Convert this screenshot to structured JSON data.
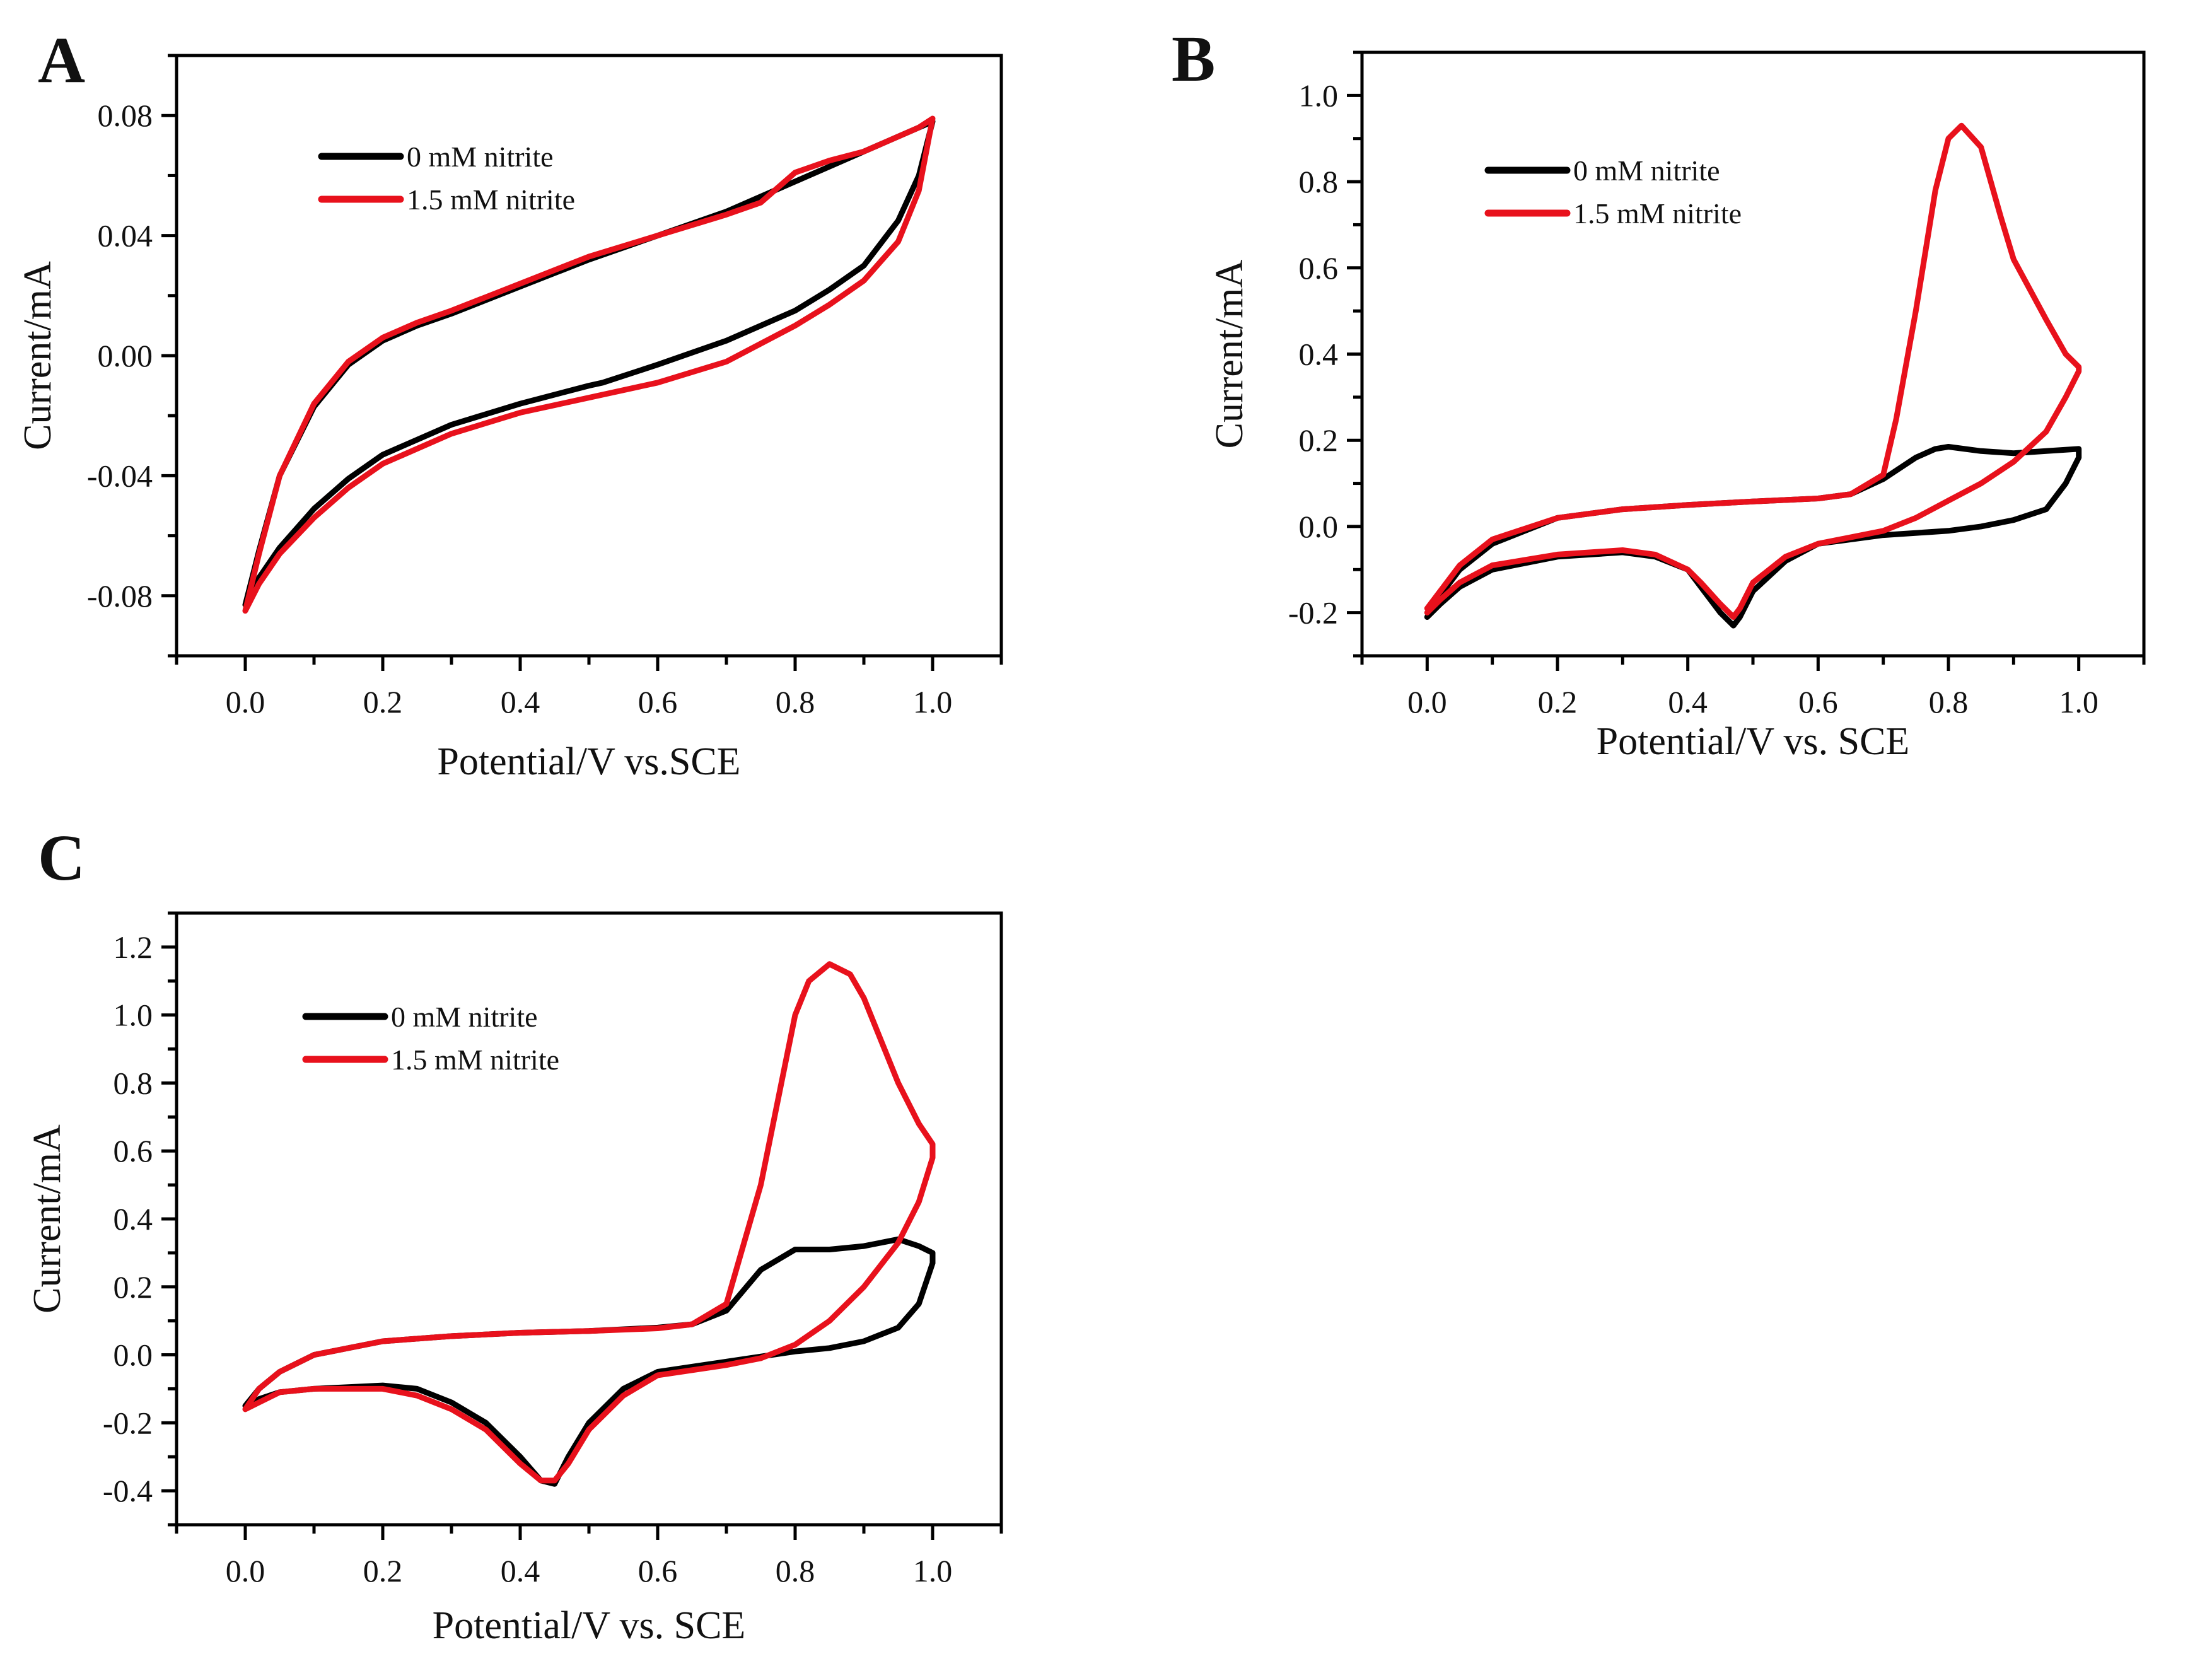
{
  "colors": {
    "series0": "#000000",
    "series1": "#e8111c",
    "axis": "#000000"
  },
  "chart_data": [
    {
      "panel_label": "A",
      "type": "line",
      "xlabel": "Potential/V vs.SCE",
      "ylabel": "Current/mA",
      "xlim": [
        -0.1,
        1.1
      ],
      "ylim": [
        -0.1,
        0.1
      ],
      "xticks": [
        0.0,
        0.2,
        0.4,
        0.6,
        0.8,
        1.0
      ],
      "xtick_labels": [
        "0.0",
        "0.2",
        "0.4",
        "0.6",
        "0.8",
        "1.0"
      ],
      "yticks": [
        -0.08,
        -0.04,
        0.0,
        0.04,
        0.08
      ],
      "ytick_labels": [
        "-0.08",
        "-0.04",
        "0.00",
        "0.04",
        "0.08"
      ],
      "legend": [
        "0 mM nitrite",
        "1.5 mM nitrite"
      ],
      "series": [
        {
          "name": "0 mM nitrite",
          "x": [
            0.0,
            0.02,
            0.05,
            0.1,
            0.15,
            0.2,
            0.25,
            0.3,
            0.4,
            0.5,
            0.6,
            0.7,
            0.8,
            0.85,
            0.9,
            0.95,
            0.98,
            1.0,
            1.0,
            0.98,
            0.95,
            0.9,
            0.85,
            0.8,
            0.7,
            0.6,
            0.52,
            0.5,
            0.4,
            0.3,
            0.2,
            0.15,
            0.1,
            0.05,
            0.02,
            0.0
          ],
          "y": [
            -0.083,
            -0.065,
            -0.04,
            -0.017,
            -0.003,
            0.005,
            0.01,
            0.014,
            0.023,
            0.032,
            0.04,
            0.048,
            0.058,
            0.063,
            0.068,
            0.073,
            0.076,
            0.078,
            0.078,
            0.06,
            0.045,
            0.03,
            0.022,
            0.015,
            0.005,
            -0.003,
            -0.009,
            -0.01,
            -0.016,
            -0.023,
            -0.033,
            -0.041,
            -0.051,
            -0.064,
            -0.074,
            -0.083
          ]
        },
        {
          "name": "1.5 mM nitrite",
          "x": [
            0.0,
            0.02,
            0.05,
            0.1,
            0.15,
            0.2,
            0.25,
            0.3,
            0.4,
            0.5,
            0.6,
            0.7,
            0.75,
            0.8,
            0.85,
            0.9,
            0.95,
            0.98,
            1.0,
            1.0,
            0.98,
            0.95,
            0.9,
            0.85,
            0.8,
            0.7,
            0.6,
            0.5,
            0.4,
            0.3,
            0.2,
            0.15,
            0.1,
            0.05,
            0.02,
            0.0
          ],
          "y": [
            -0.085,
            -0.066,
            -0.04,
            -0.016,
            -0.002,
            0.006,
            0.011,
            0.015,
            0.024,
            0.033,
            0.04,
            0.047,
            0.051,
            0.061,
            0.065,
            0.068,
            0.073,
            0.076,
            0.079,
            0.079,
            0.055,
            0.038,
            0.025,
            0.017,
            0.01,
            -0.002,
            -0.009,
            -0.014,
            -0.019,
            -0.026,
            -0.036,
            -0.044,
            -0.054,
            -0.066,
            -0.076,
            -0.085
          ]
        }
      ]
    },
    {
      "panel_label": "B",
      "type": "line",
      "xlabel": "Potential/V vs. SCE",
      "ylabel": "Current/mA",
      "xlim": [
        -0.1,
        1.1
      ],
      "ylim": [
        -0.3,
        1.1
      ],
      "xticks": [
        0.0,
        0.2,
        0.4,
        0.6,
        0.8,
        1.0
      ],
      "xtick_labels": [
        "0.0",
        "0.2",
        "0.4",
        "0.6",
        "0.8",
        "1.0"
      ],
      "yticks": [
        -0.2,
        0.0,
        0.2,
        0.4,
        0.6,
        0.8,
        1.0
      ],
      "ytick_labels": [
        "-0.2",
        "0.0",
        "0.2",
        "0.4",
        "0.6",
        "0.8",
        "1.0"
      ],
      "legend": [
        "0 mM nitrite",
        "1.5 mM nitrite"
      ],
      "series": [
        {
          "name": "0 mM nitrite",
          "x": [
            0.0,
            0.02,
            0.05,
            0.1,
            0.2,
            0.3,
            0.4,
            0.5,
            0.6,
            0.65,
            0.7,
            0.75,
            0.78,
            0.8,
            0.85,
            0.9,
            0.95,
            1.0,
            1.0,
            0.98,
            0.95,
            0.9,
            0.85,
            0.8,
            0.7,
            0.6,
            0.55,
            0.5,
            0.48,
            0.47,
            0.45,
            0.42,
            0.4,
            0.35,
            0.3,
            0.2,
            0.1,
            0.05,
            0.02,
            0.0
          ],
          "y": [
            -0.21,
            -0.16,
            -0.1,
            -0.04,
            0.02,
            0.04,
            0.05,
            0.058,
            0.065,
            0.075,
            0.11,
            0.16,
            0.18,
            0.185,
            0.175,
            0.17,
            0.175,
            0.18,
            0.16,
            0.1,
            0.04,
            0.015,
            0.0,
            -0.01,
            -0.02,
            -0.04,
            -0.08,
            -0.15,
            -0.21,
            -0.23,
            -0.2,
            -0.14,
            -0.1,
            -0.07,
            -0.06,
            -0.07,
            -0.1,
            -0.14,
            -0.18,
            -0.21
          ]
        },
        {
          "name": "1.5 mM nitrite",
          "x": [
            0.0,
            0.02,
            0.05,
            0.1,
            0.2,
            0.3,
            0.4,
            0.5,
            0.6,
            0.65,
            0.7,
            0.72,
            0.75,
            0.78,
            0.8,
            0.82,
            0.85,
            0.88,
            0.9,
            0.95,
            0.98,
            1.0,
            1.0,
            0.98,
            0.95,
            0.9,
            0.85,
            0.8,
            0.75,
            0.7,
            0.6,
            0.55,
            0.5,
            0.48,
            0.47,
            0.45,
            0.42,
            0.4,
            0.35,
            0.3,
            0.2,
            0.1,
            0.05,
            0.02,
            0.0
          ],
          "y": [
            -0.19,
            -0.15,
            -0.09,
            -0.03,
            0.02,
            0.04,
            0.05,
            0.058,
            0.065,
            0.075,
            0.12,
            0.25,
            0.5,
            0.78,
            0.9,
            0.93,
            0.88,
            0.72,
            0.62,
            0.48,
            0.4,
            0.37,
            0.36,
            0.3,
            0.22,
            0.15,
            0.1,
            0.06,
            0.02,
            -0.01,
            -0.04,
            -0.07,
            -0.13,
            -0.19,
            -0.21,
            -0.18,
            -0.13,
            -0.1,
            -0.065,
            -0.055,
            -0.065,
            -0.09,
            -0.13,
            -0.17,
            -0.2
          ]
        }
      ]
    },
    {
      "panel_label": "C",
      "type": "line",
      "xlabel": "Potential/V vs. SCE",
      "ylabel": "Current/mA",
      "xlim": [
        -0.1,
        1.1
      ],
      "ylim": [
        -0.5,
        1.3
      ],
      "xticks": [
        0.0,
        0.2,
        0.4,
        0.6,
        0.8,
        1.0
      ],
      "xtick_labels": [
        "0.0",
        "0.2",
        "0.4",
        "0.6",
        "0.8",
        "1.0"
      ],
      "yticks": [
        -0.4,
        -0.2,
        0.0,
        0.2,
        0.4,
        0.6,
        0.8,
        1.0,
        1.2
      ],
      "ytick_labels": [
        "-0.4",
        "-0.2",
        "0.0",
        "0.2",
        "0.4",
        "0.6",
        "0.8",
        "1.0",
        "1.2"
      ],
      "legend": [
        "0 mM nitrite",
        "1.5 mM nitrite"
      ],
      "series": [
        {
          "name": "0 mM nitrite",
          "x": [
            0.0,
            0.02,
            0.05,
            0.1,
            0.2,
            0.3,
            0.4,
            0.5,
            0.6,
            0.65,
            0.7,
            0.75,
            0.8,
            0.85,
            0.9,
            0.95,
            0.98,
            1.0,
            1.0,
            0.98,
            0.95,
            0.9,
            0.85,
            0.8,
            0.7,
            0.6,
            0.55,
            0.5,
            0.47,
            0.45,
            0.43,
            0.4,
            0.35,
            0.3,
            0.25,
            0.2,
            0.1,
            0.05,
            0.02,
            0.0
          ],
          "y": [
            -0.15,
            -0.1,
            -0.05,
            0.0,
            0.04,
            0.055,
            0.065,
            0.07,
            0.08,
            0.09,
            0.13,
            0.25,
            0.31,
            0.31,
            0.32,
            0.34,
            0.32,
            0.3,
            0.27,
            0.15,
            0.08,
            0.04,
            0.02,
            0.01,
            -0.02,
            -0.05,
            -0.1,
            -0.2,
            -0.3,
            -0.38,
            -0.37,
            -0.3,
            -0.2,
            -0.14,
            -0.1,
            -0.09,
            -0.1,
            -0.11,
            -0.13,
            -0.15
          ]
        },
        {
          "name": "1.5 mM nitrite",
          "x": [
            0.0,
            0.02,
            0.05,
            0.1,
            0.2,
            0.3,
            0.4,
            0.5,
            0.6,
            0.65,
            0.7,
            0.75,
            0.78,
            0.8,
            0.82,
            0.85,
            0.88,
            0.9,
            0.93,
            0.95,
            0.98,
            1.0,
            1.0,
            0.98,
            0.95,
            0.9,
            0.85,
            0.8,
            0.75,
            0.7,
            0.6,
            0.55,
            0.5,
            0.47,
            0.45,
            0.43,
            0.4,
            0.35,
            0.3,
            0.25,
            0.2,
            0.1,
            0.05,
            0.02,
            0.0
          ],
          "y": [
            -0.16,
            -0.1,
            -0.05,
            0.0,
            0.04,
            0.055,
            0.065,
            0.07,
            0.078,
            0.09,
            0.15,
            0.5,
            0.8,
            1.0,
            1.1,
            1.15,
            1.12,
            1.05,
            0.9,
            0.8,
            0.68,
            0.62,
            0.58,
            0.45,
            0.33,
            0.2,
            0.1,
            0.03,
            -0.01,
            -0.03,
            -0.06,
            -0.12,
            -0.22,
            -0.32,
            -0.37,
            -0.37,
            -0.32,
            -0.22,
            -0.16,
            -0.12,
            -0.1,
            -0.1,
            -0.11,
            -0.14,
            -0.16
          ]
        }
      ]
    }
  ]
}
